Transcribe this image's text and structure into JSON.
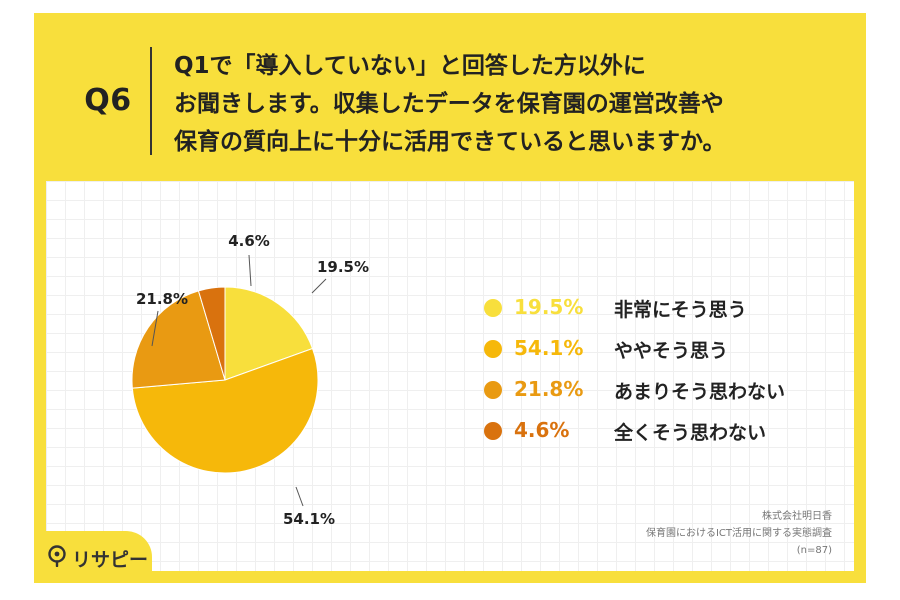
{
  "question": {
    "number": "Q6",
    "lines": [
      "Q1で「導入していない」と回答した方以外に",
      "お聞きします。収集したデータを保育園の運営改善や",
      "保育の質向上に十分に活用できていると思いますか。"
    ]
  },
  "chart_data": {
    "type": "pie",
    "title": "",
    "categories": [
      "非常にそう思う",
      "ややそう思う",
      "あまりそう思わない",
      "全くそう思わない"
    ],
    "values": [
      19.5,
      54.1,
      21.8,
      4.6
    ],
    "value_labels": [
      "19.5%",
      "54.1%",
      "21.8%",
      "4.6%"
    ],
    "pie_labels": [
      "19.5%",
      "54.1%",
      "21.8%",
      "4.6%"
    ],
    "colors": [
      "#F8DF3C",
      "#F6B80A",
      "#E99A12",
      "#D9720E"
    ],
    "start_angle": "12 o'clock",
    "direction": "clockwise",
    "legend_placement": "right",
    "grid": false
  },
  "source": {
    "company": "株式会社明日香",
    "survey": "保育園におけるICT活用に関する実態調査",
    "sample": "(n=87)"
  },
  "logo": {
    "text": "リサピー",
    "icon": "rissapi-logo-icon"
  }
}
